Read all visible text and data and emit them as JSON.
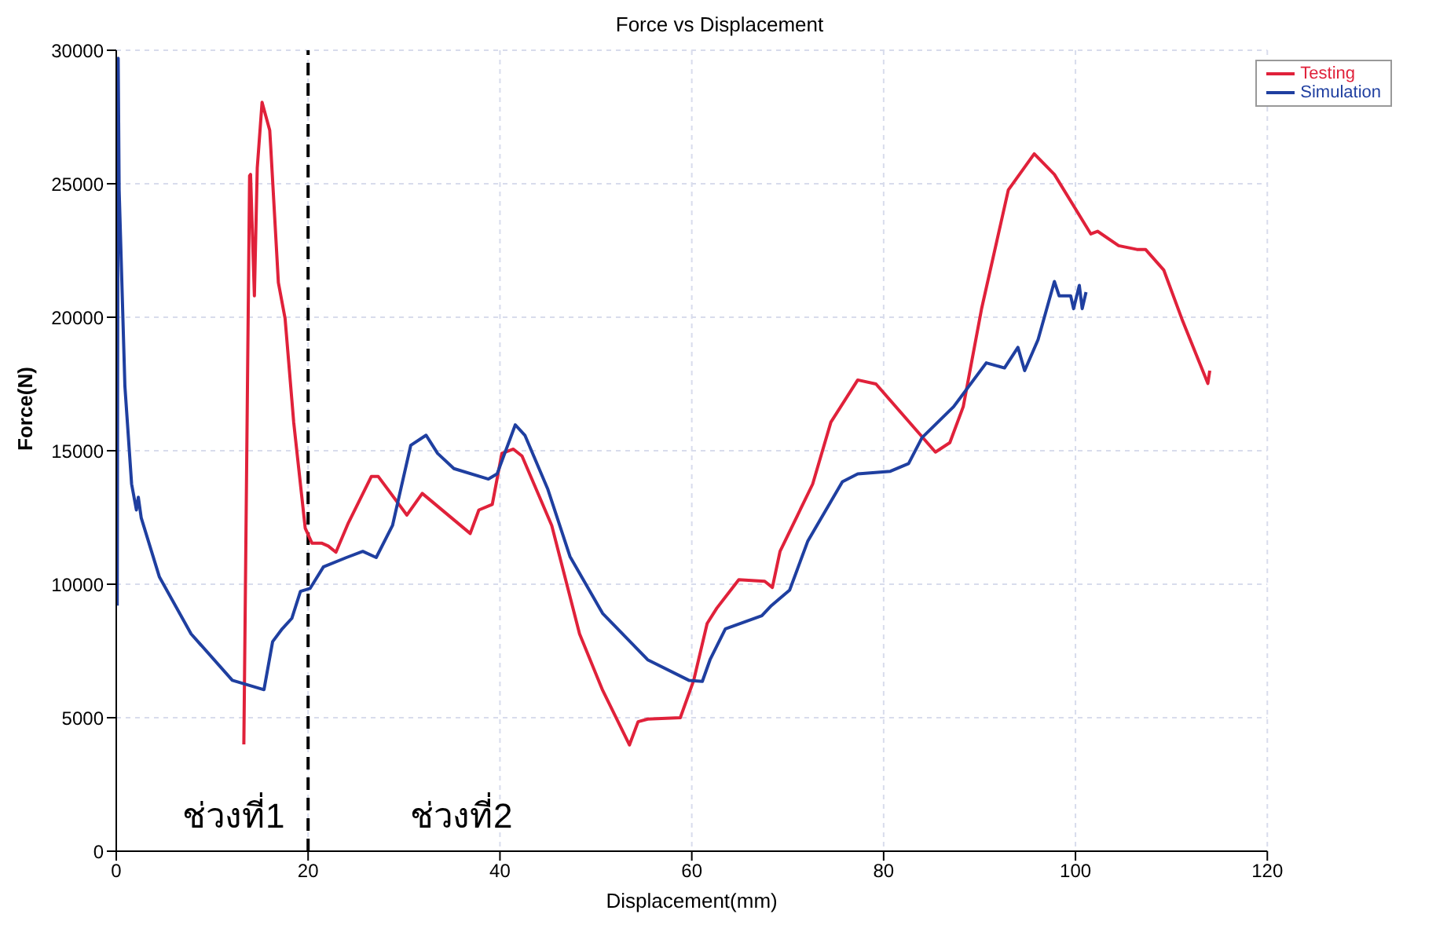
{
  "chart_data": {
    "type": "line",
    "title": "Force vs Displacement",
    "xlabel": "Displacement(mm)",
    "ylabel": "Force(N)",
    "xlim": [
      0,
      120
    ],
    "ylim": [
      0,
      30000
    ],
    "xticks": [
      0,
      20,
      40,
      60,
      80,
      100,
      120
    ],
    "yticks": [
      0,
      5000,
      10000,
      15000,
      20000,
      25000,
      30000
    ],
    "grid": true,
    "legend": "top right",
    "marker": "none",
    "line_style": "solid",
    "ref_lines": [
      {
        "axis": "x",
        "value": 20,
        "color": "#000000",
        "line_style": "dashed"
      }
    ],
    "annotations": [
      "ช่วงที่1",
      "ช่วงที่2"
    ],
    "series": [
      {
        "name": "Testing",
        "color": "#e0213a",
        "x": [
          13.3,
          13.9,
          14.0,
          14.4,
          14.7,
          15.2,
          16.0,
          16.1,
          16.9,
          17.6,
          18.5,
          19.7,
          20.4,
          21.4,
          22.1,
          22.9,
          24.2,
          26.6,
          27.3,
          30.3,
          31.9,
          36.9,
          37.8,
          39.2,
          40.2,
          41.4,
          42.3,
          45.4,
          48.3,
          50.7,
          53.5,
          54.4,
          55.4,
          58.8,
          60.2,
          61.6,
          62.6,
          64.9,
          67.6,
          68.4,
          69.2,
          72.6,
          74.5,
          77.3,
          79.2,
          85.4,
          86.9,
          88.3,
          90.2,
          93.0,
          95.7,
          97.8,
          101.6,
          102.3,
          104.5,
          106.4,
          107.3,
          109.2,
          111.1,
          113.8,
          114.0
        ],
        "values": [
          4000,
          25300,
          25350,
          20800,
          25600,
          28050,
          27000,
          26400,
          21300,
          19950,
          16060,
          12100,
          11540,
          11540,
          11430,
          11200,
          12300,
          14040,
          14040,
          12590,
          13400,
          11900,
          12780,
          12990,
          14900,
          15060,
          14800,
          12200,
          8140,
          6030,
          3980,
          4850,
          4950,
          5000,
          6400,
          8530,
          9100,
          10170,
          10110,
          9880,
          11230,
          13750,
          16070,
          17650,
          17500,
          14950,
          15300,
          16650,
          20300,
          24770,
          26120,
          25350,
          23120,
          23220,
          22680,
          22540,
          22540,
          21770,
          19930,
          17520,
          18000
        ]
      },
      {
        "name": "Simulation",
        "color": "#1f3fa0",
        "x": [
          0.1,
          0.2,
          0.3,
          0.9,
          1.6,
          2.1,
          2.3,
          2.6,
          4.5,
          7.8,
          12.1,
          15.4,
          16.3,
          17.3,
          18.3,
          19.2,
          20.2,
          21.6,
          24.0,
          25.7,
          27.1,
          28.8,
          30.7,
          32.3,
          33.5,
          35.2,
          38.8,
          39.7,
          41.6,
          42.6,
          45.0,
          47.3,
          50.7,
          55.4,
          59.7,
          61.1,
          61.9,
          63.5,
          67.3,
          68.3,
          70.2,
          72.1,
          75.7,
          77.3,
          80.7,
          82.6,
          84.0,
          87.3,
          90.7,
          92.6,
          94.0,
          94.7,
          96.1,
          97.8,
          98.3,
          99.5,
          99.8,
          100.4,
          100.7,
          101.1
        ],
        "values": [
          9200,
          29700,
          24770,
          17420,
          13750,
          12780,
          13260,
          12490,
          10270,
          8140,
          6400,
          6050,
          7850,
          8330,
          8720,
          9730,
          9840,
          10650,
          11000,
          11230,
          11000,
          12200,
          15200,
          15580,
          14900,
          14330,
          13940,
          14130,
          15970,
          15580,
          13550,
          11040,
          8910,
          7170,
          6400,
          6360,
          7170,
          8330,
          8820,
          9200,
          9780,
          11620,
          13840,
          14130,
          14230,
          14520,
          15490,
          16650,
          18290,
          18100,
          18870,
          18000,
          19160,
          21340,
          20800,
          20800,
          20320,
          21190,
          20320,
          20940
        ]
      }
    ]
  }
}
